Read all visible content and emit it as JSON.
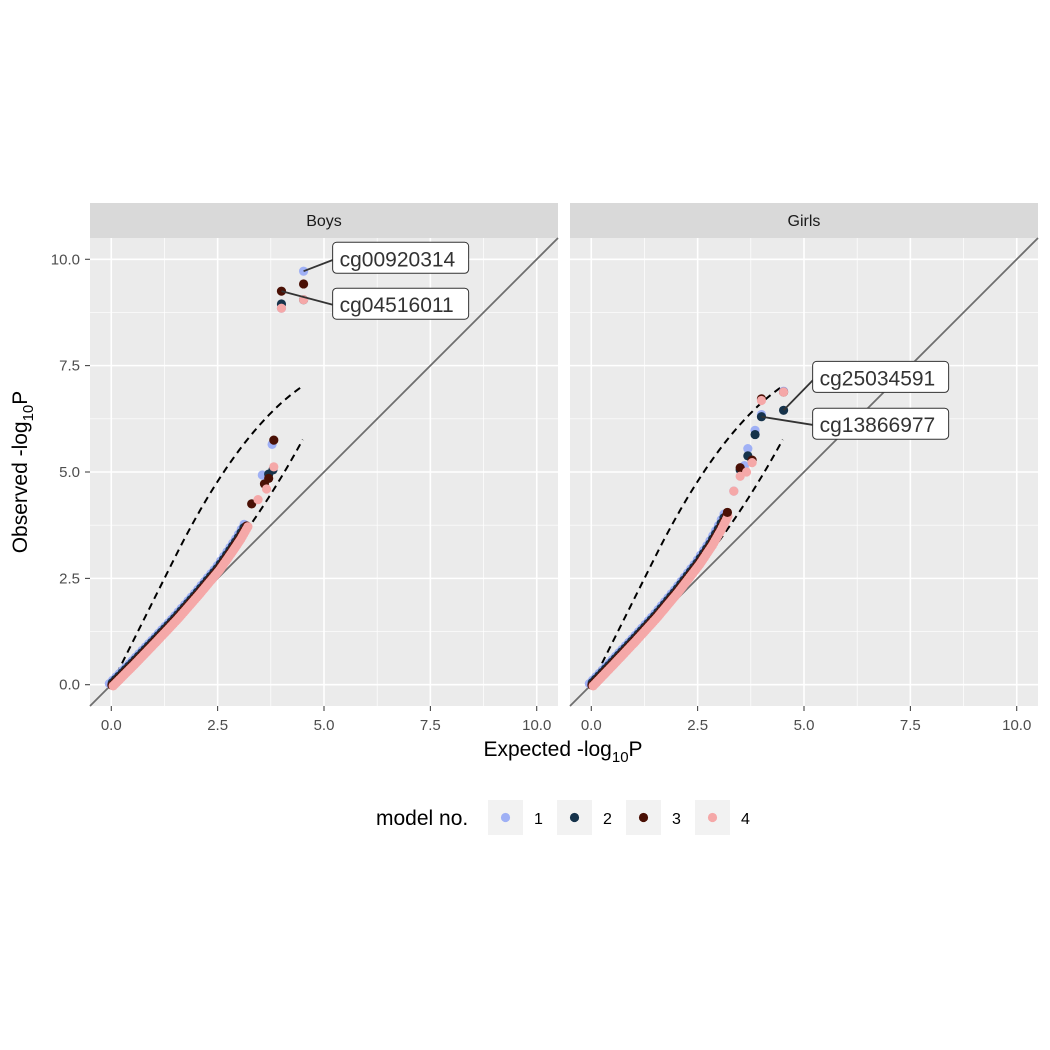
{
  "chart_data": {
    "type": "scatter",
    "subtype": "QQ plot (faceted)",
    "xlabel": {
      "main": "Expected -log",
      "sub": "10",
      "end": "P"
    },
    "ylabel": {
      "main": "Observed -log",
      "sub": "10",
      "end": "P"
    },
    "xlim": [
      -0.5,
      10.5
    ],
    "ylim": [
      -0.5,
      10.5
    ],
    "x_ticks": [
      0,
      2.5,
      5,
      7.5,
      10
    ],
    "x_tick_labels": [
      "0.0",
      "2.5",
      "5.0",
      "7.5",
      "10.0"
    ],
    "y_ticks": [
      0,
      2.5,
      5,
      7.5,
      10
    ],
    "y_tick_labels": [
      "0.0",
      "2.5",
      "5.0",
      "7.5",
      "10.0"
    ],
    "grid": true,
    "reference_line": "y = x",
    "confidence_band": "dashed",
    "legend": {
      "title": "model no.",
      "position": "bottom",
      "entries": [
        {
          "label": "1",
          "color": "#9fb0f5"
        },
        {
          "label": "2",
          "color": "#16334b"
        },
        {
          "label": "3",
          "color": "#4a1005"
        },
        {
          "label": "4",
          "color": "#f5a8a8"
        }
      ]
    },
    "panels": [
      {
        "strip": "Boys",
        "annotations": [
          {
            "label": "cg00920314",
            "x": 4.52,
            "y": 9.72,
            "label_x": 5.25,
            "label_y": 10.0
          },
          {
            "label": "cg04516011",
            "x": 4.0,
            "y": 9.25,
            "label_x": 5.25,
            "label_y": 8.92
          }
        ],
        "series": [
          {
            "model": "1",
            "points": [
              [
                3.55,
                4.93
              ],
              [
                3.78,
                5.65
              ],
              [
                4.0,
                8.85
              ],
              [
                4.52,
                9.72
              ]
            ]
          },
          {
            "model": "2",
            "points": [
              [
                3.7,
                4.95
              ],
              [
                3.8,
                5.05
              ],
              [
                4.0,
                8.95
              ],
              [
                4.52,
                9.05
              ]
            ]
          },
          {
            "model": "3",
            "points": [
              [
                3.3,
                4.25
              ],
              [
                3.6,
                4.72
              ],
              [
                3.7,
                4.85
              ],
              [
                3.82,
                5.75
              ],
              [
                4.0,
                9.25
              ],
              [
                4.52,
                9.42
              ]
            ]
          },
          {
            "model": "4",
            "points": [
              [
                3.45,
                4.35
              ],
              [
                3.65,
                4.6
              ],
              [
                3.82,
                5.12
              ],
              [
                4.0,
                8.85
              ],
              [
                4.52,
                9.05
              ]
            ]
          }
        ],
        "trend": [
          [
            0,
            0
          ],
          [
            0.5,
            0.5
          ],
          [
            1.0,
            1.02
          ],
          [
            1.5,
            1.55
          ],
          [
            2.0,
            2.12
          ],
          [
            2.5,
            2.72
          ],
          [
            2.8,
            3.15
          ],
          [
            3.0,
            3.45
          ],
          [
            3.2,
            3.8
          ]
        ]
      },
      {
        "strip": "Girls",
        "annotations": [
          {
            "label": "cg25034591",
            "x": 4.52,
            "y": 6.45,
            "label_x": 5.25,
            "label_y": 7.2
          },
          {
            "label": "cg13866977",
            "x": 4.0,
            "y": 6.3,
            "label_x": 5.25,
            "label_y": 6.1
          }
        ],
        "series": [
          {
            "model": "1",
            "points": [
              [
                3.35,
                4.55
              ],
              [
                3.6,
                5.15
              ],
              [
                3.68,
                5.55
              ],
              [
                3.85,
                5.98
              ],
              [
                4.0,
                6.35
              ],
              [
                4.52,
                6.9
              ]
            ]
          },
          {
            "model": "2",
            "points": [
              [
                3.5,
                5.05
              ],
              [
                3.68,
                5.38
              ],
              [
                3.85,
                5.88
              ],
              [
                4.0,
                6.3
              ],
              [
                4.52,
                6.45
              ]
            ]
          },
          {
            "model": "3",
            "points": [
              [
                3.2,
                4.05
              ],
              [
                3.5,
                5.1
              ],
              [
                3.78,
                5.28
              ],
              [
                4.0,
                6.72
              ],
              [
                4.52,
                6.88
              ]
            ]
          },
          {
            "model": "4",
            "points": [
              [
                3.35,
                4.55
              ],
              [
                3.5,
                4.9
              ],
              [
                3.65,
                5.0
              ],
              [
                3.78,
                5.22
              ],
              [
                4.0,
                6.68
              ],
              [
                4.52,
                6.88
              ]
            ]
          }
        ],
        "trend": [
          [
            0,
            0
          ],
          [
            0.5,
            0.52
          ],
          [
            1.0,
            1.05
          ],
          [
            1.5,
            1.6
          ],
          [
            2.0,
            2.2
          ],
          [
            2.5,
            2.85
          ],
          [
            2.8,
            3.3
          ],
          [
            3.0,
            3.65
          ],
          [
            3.2,
            4.05
          ]
        ]
      }
    ]
  }
}
